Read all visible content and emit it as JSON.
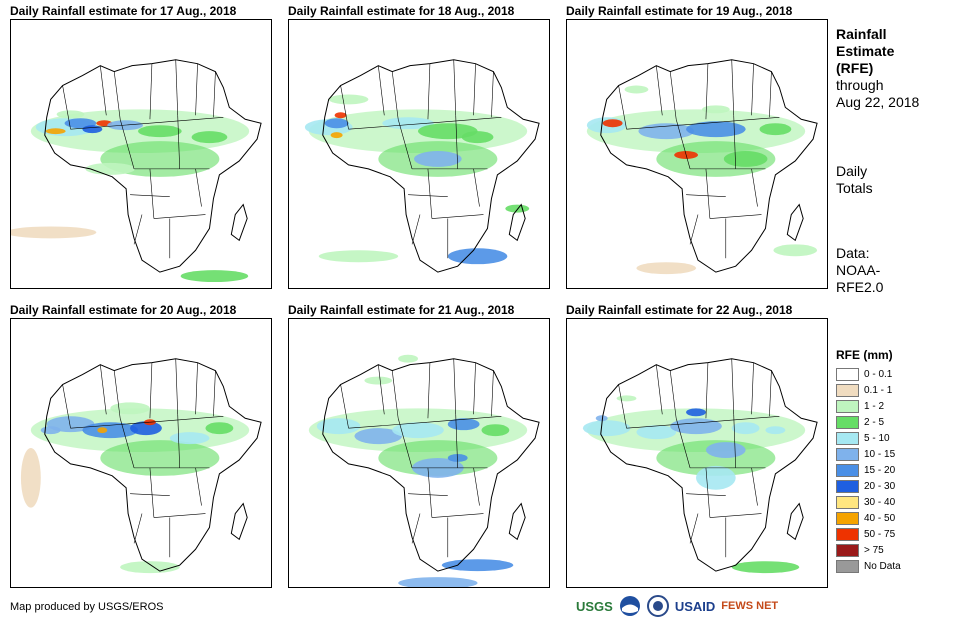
{
  "panels": [
    {
      "title": "Daily Rainfall estimate for 17 Aug., 2018"
    },
    {
      "title": "Daily Rainfall estimate for 18 Aug., 2018"
    },
    {
      "title": "Daily Rainfall estimate for 19 Aug., 2018"
    },
    {
      "title": "Daily Rainfall estimate for 20 Aug., 2018"
    },
    {
      "title": "Daily Rainfall estimate for 21 Aug., 2018"
    },
    {
      "title": "Daily Rainfall estimate for 22 Aug., 2018"
    }
  ],
  "sidebar": {
    "heading_1": "Rainfall",
    "heading_2": "Estimate",
    "heading_3": "(RFE)",
    "through_1": "through",
    "through_2": "Aug 22, 2018",
    "daily_1": "Daily",
    "daily_2": "Totals",
    "data_1": "Data:",
    "data_2": "NOAA-",
    "data_3": "RFE2.0"
  },
  "legend": {
    "title": "RFE (mm)",
    "items": [
      {
        "label": "0 - 0.1",
        "color": "#ffffff"
      },
      {
        "label": "0.1 - 1",
        "color": "#f0dcc0"
      },
      {
        "label": "1 - 2",
        "color": "#bff5bf"
      },
      {
        "label": "2 - 5",
        "color": "#66dd66"
      },
      {
        "label": "5 - 10",
        "color": "#a6e8f2"
      },
      {
        "label": "10 - 15",
        "color": "#7fb2ec"
      },
      {
        "label": "15 - 20",
        "color": "#4a8fe6"
      },
      {
        "label": "20 - 30",
        "color": "#1f5fe0"
      },
      {
        "label": "30 - 40",
        "color": "#ffe680"
      },
      {
        "label": "40 - 50",
        "color": "#f5a300"
      },
      {
        "label": "50 - 75",
        "color": "#ee3300"
      },
      {
        "label": "> 75",
        "color": "#9a1a1a"
      },
      {
        "label": "No Data",
        "color": "#999999"
      }
    ]
  },
  "credit": "Map produced by USGS/EROS",
  "logos": {
    "usgs": "USGS",
    "noaa": "NOAA",
    "usaid": "USAID",
    "fewsnet": "FEWS NET"
  }
}
